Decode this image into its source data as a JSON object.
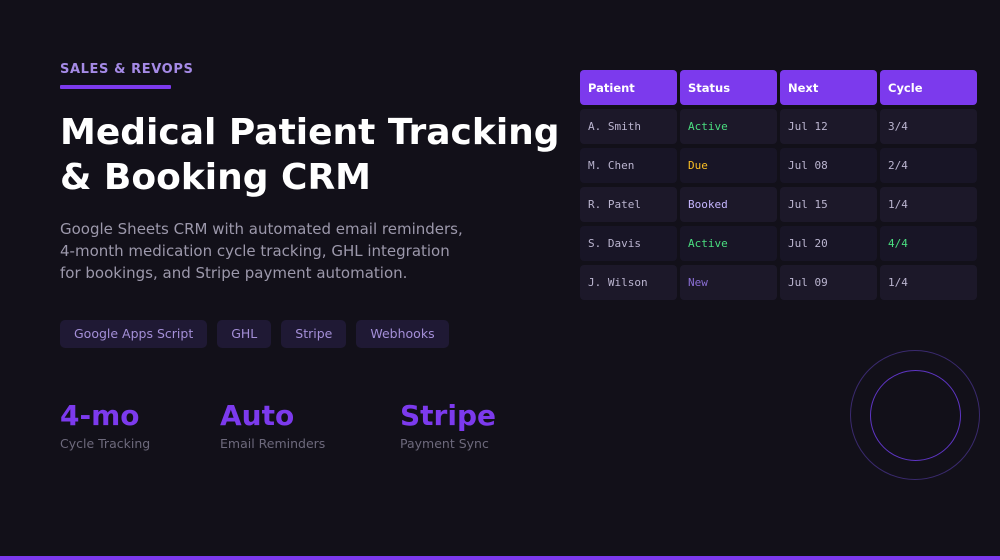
{
  "hero": {
    "eyebrow": "SALES & REVOPS",
    "title_line1": "Medical Patient Tracking",
    "title_line2": "& Booking CRM",
    "description_lines": [
      "Google Sheets CRM with automated email reminders,",
      "4-month medication cycle tracking, GHL integration",
      "for bookings, and Stripe payment automation."
    ],
    "tags": [
      "Google Apps Script",
      "GHL",
      "Stripe",
      "Webhooks"
    ],
    "stats": [
      {
        "value": "4-mo",
        "label": "Cycle Tracking"
      },
      {
        "value": "Auto",
        "label": "Email Reminders"
      },
      {
        "value": "Stripe",
        "label": "Payment Sync"
      }
    ]
  },
  "table": {
    "headers": [
      "Patient",
      "Status",
      "Next",
      "Cycle"
    ],
    "rows": [
      {
        "patient": "A. Smith",
        "status": "Active",
        "next": "Jul 12",
        "cycle": "3/4"
      },
      {
        "patient": "M. Chen",
        "status": "Due",
        "next": "Jul 08",
        "cycle": "2/4"
      },
      {
        "patient": "R. Patel",
        "status": "Booked",
        "next": "Jul 15",
        "cycle": "1/4"
      },
      {
        "patient": "S. Davis",
        "status": "Active",
        "next": "Jul 20",
        "cycle": "4/4"
      },
      {
        "patient": "J. Wilson",
        "status": "New",
        "next": "Jul 09",
        "cycle": "1/4"
      }
    ]
  },
  "colors": {
    "accent": "#7c3aed",
    "status_active": "#4ade80",
    "status_due": "#fbbf24",
    "status_booked": "#c4b5fd",
    "status_new": "#8b6fd6",
    "cycle_complete": "#4ade80"
  }
}
